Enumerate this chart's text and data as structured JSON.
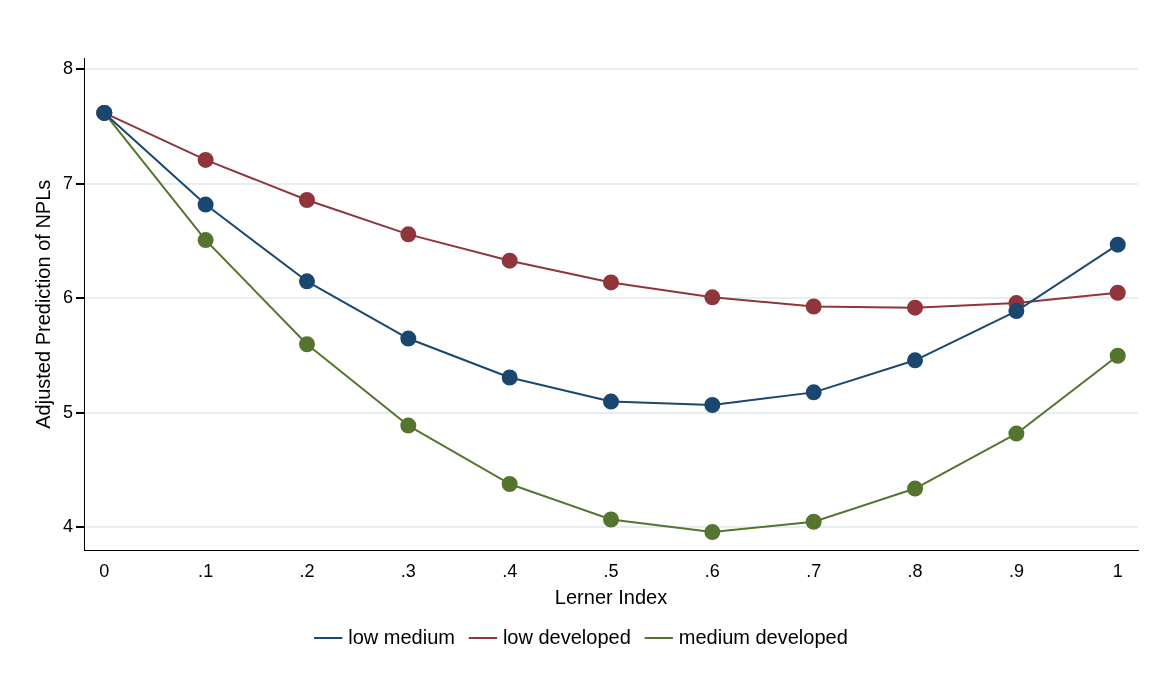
{
  "chart_data": {
    "type": "line",
    "xlabel": "Lerner Index",
    "ylabel": "Adjusted Prediction of NPLs",
    "x": [
      0,
      0.1,
      0.2,
      0.3,
      0.4,
      0.5,
      0.6,
      0.7,
      0.8,
      0.9,
      1
    ],
    "series": [
      {
        "name": "low medium",
        "color": "#1a476f",
        "values": [
          7.62,
          6.82,
          6.15,
          5.65,
          5.31,
          5.1,
          5.07,
          5.18,
          5.46,
          5.89,
          6.47
        ]
      },
      {
        "name": "low developed",
        "color": "#90353b",
        "values": [
          7.62,
          7.21,
          6.86,
          6.56,
          6.33,
          6.14,
          6.01,
          5.93,
          5.92,
          5.96,
          6.05
        ]
      },
      {
        "name": "medium developed",
        "color": "#55752f",
        "values": [
          7.62,
          6.51,
          5.6,
          4.89,
          4.38,
          4.07,
          3.96,
          4.05,
          4.34,
          4.82,
          5.5
        ]
      }
    ],
    "xlim": [
      -0.02,
      1.02
    ],
    "ylim": [
      3.8,
      8.1
    ],
    "xticks": [
      0,
      {
        "value": 0.1,
        "label": ".1"
      },
      {
        "value": 0.2,
        "label": ".2"
      },
      {
        "value": 0.3,
        "label": ".3"
      },
      {
        "value": 0.4,
        "label": ".4"
      },
      {
        "value": 0.5,
        "label": ".5"
      },
      {
        "value": 0.6,
        "label": ".6"
      },
      {
        "value": 0.7,
        "label": ".7"
      },
      {
        "value": 0.8,
        "label": ".8"
      },
      {
        "value": 0.9,
        "label": ".9"
      },
      1
    ],
    "yticks": [
      4,
      5,
      6,
      7,
      8
    ],
    "grid": "y",
    "legend": "bottom",
    "marker": "circle",
    "line_style": "solid"
  }
}
